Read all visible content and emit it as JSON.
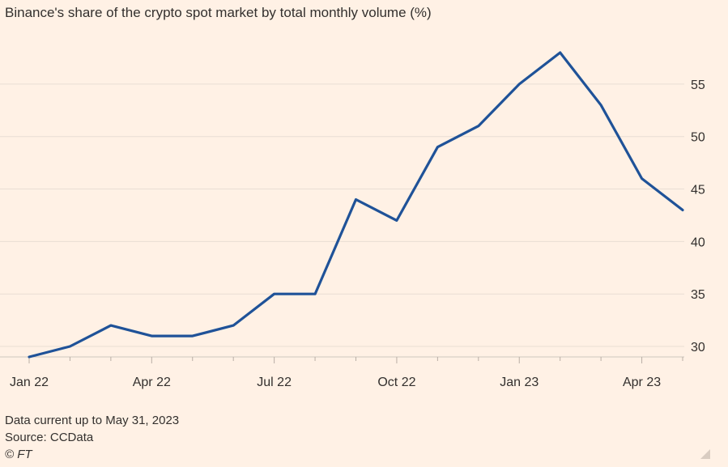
{
  "title": "Binance's share of the crypto spot market by total monthly volume (%)",
  "footer": {
    "note": "Data current up to May 31, 2023",
    "source": "Source: CCData",
    "credit": "© FT"
  },
  "colors": {
    "background": "#FFF1E5",
    "line": "#1F5298",
    "grid": "#E9DED4",
    "text": "#33302E"
  },
  "chart_data": {
    "type": "line",
    "title": "Binance's share of the crypto spot market by total monthly volume (%)",
    "xlabel": "",
    "ylabel": "",
    "x": [
      "2022-01",
      "2022-02",
      "2022-03",
      "2022-04",
      "2022-05",
      "2022-06",
      "2022-07",
      "2022-08",
      "2022-09",
      "2022-10",
      "2022-11",
      "2022-12",
      "2023-01",
      "2023-02",
      "2023-03",
      "2023-04",
      "2023-05"
    ],
    "series": [
      {
        "values": [
          29,
          30,
          32,
          31,
          31,
          32,
          35,
          35,
          44,
          42,
          49,
          51,
          55,
          58,
          53,
          46,
          43
        ]
      }
    ],
    "x_tick_labels": [
      "Jan 22",
      "Apr 22",
      "Jul 22",
      "Oct 22",
      "Jan 23",
      "Apr 23"
    ],
    "y_ticks": [
      30,
      35,
      40,
      45,
      50,
      55
    ],
    "ylim": [
      29,
      59
    ],
    "y_axis_side": "right",
    "grid": "horizontal"
  }
}
